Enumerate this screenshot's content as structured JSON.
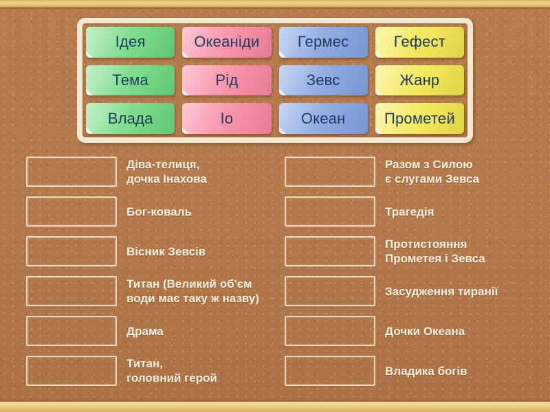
{
  "board": {
    "cards": [
      {
        "label": "Ідея",
        "color": "green"
      },
      {
        "label": "Океаніди",
        "color": "pink"
      },
      {
        "label": "Гермес",
        "color": "blue"
      },
      {
        "label": "Гефест",
        "color": "yellow"
      },
      {
        "label": "Тема",
        "color": "green"
      },
      {
        "label": "Рід",
        "color": "pink"
      },
      {
        "label": "Зевс",
        "color": "blue"
      },
      {
        "label": "Жанр",
        "color": "yellow"
      },
      {
        "label": "Влада",
        "color": "green"
      },
      {
        "label": "Іо",
        "color": "pink"
      },
      {
        "label": "Океан",
        "color": "blue"
      },
      {
        "label": "Прометей",
        "color": "yellow"
      }
    ]
  },
  "matches": {
    "left": [
      "Діва-телиця,\nдочка Інахова",
      "Бог-коваль",
      "Вісник Зевсів",
      "Титан (Великий об'єм\nводи має таку ж назву)",
      "Драма",
      "Титан,\nголовний герой"
    ],
    "right": [
      "Разом з Силою\nє слугами Зевса",
      "Трагедія",
      "Протистояння\nПрометея і Зевса",
      "Засудження тиранії",
      "Дочки Океана",
      "Владика богів"
    ]
  },
  "colors": {
    "card_green": "#7edc8c",
    "card_pink": "#f795aa",
    "card_blue": "#8fabe2",
    "card_yellow": "#f2e95c",
    "card_text": "#1e3a5f",
    "definition_text": "#f7f0e0",
    "cork_background": "#b3794a",
    "panel_frame": "#f3e8d0",
    "wood_trim": "#e9cc7f"
  }
}
